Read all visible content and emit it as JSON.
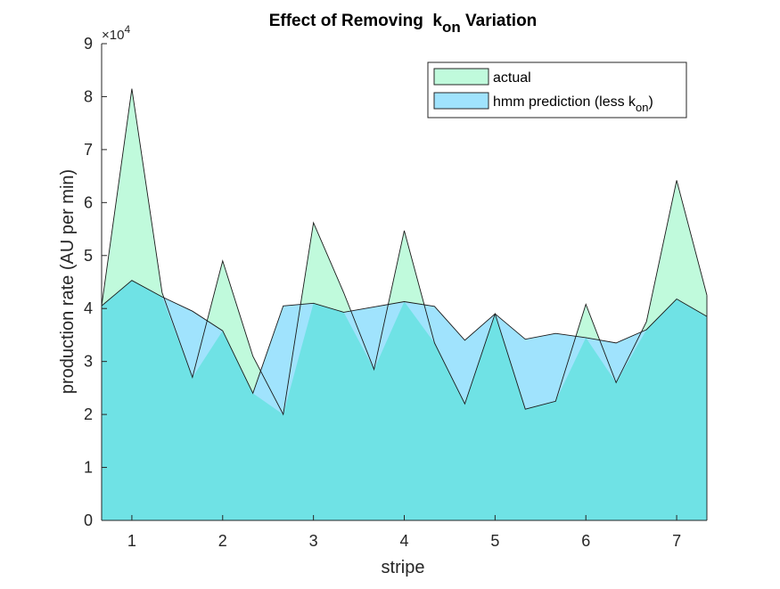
{
  "chart_data": {
    "type": "area",
    "title_parts": {
      "prefix": "Effect of Removing  k",
      "subscript": "on",
      "suffix": " Variation"
    },
    "xlabel": "stripe",
    "ylabel": "production rate (AU per min)",
    "exponent_label": {
      "prefix": "×10",
      "power": "4"
    },
    "xlim": [
      0.667,
      7.333
    ],
    "ylim": [
      0,
      9
    ],
    "x_ticks": [
      1,
      2,
      3,
      4,
      5,
      6,
      7
    ],
    "y_ticks": [
      0,
      1,
      2,
      3,
      4,
      5,
      6,
      7,
      8,
      9
    ],
    "grid": false,
    "legend_position": "top-right",
    "x": [
      0.667,
      1.0,
      1.333,
      1.667,
      2.0,
      2.333,
      2.667,
      3.0,
      3.333,
      3.667,
      4.0,
      4.333,
      4.667,
      5.0,
      5.333,
      5.667,
      6.0,
      6.333,
      6.667,
      7.0,
      7.333
    ],
    "series": [
      {
        "name": "actual",
        "legend_label": "actual",
        "color": "#c0fadc",
        "overlap_color": "#6fe2e5",
        "values": [
          4.05,
          8.15,
          4.3,
          2.7,
          4.9,
          3.1,
          2.0,
          5.62,
          4.3,
          2.85,
          5.47,
          3.35,
          2.2,
          3.9,
          2.1,
          2.25,
          4.08,
          2.6,
          3.75,
          6.42,
          4.25
        ]
      },
      {
        "name": "hmm prediction (less k_on)",
        "legend_label_prefix": "hmm prediction (less k",
        "legend_label_sub": "on",
        "legend_label_suffix": ")",
        "color": "#a0e3fd",
        "values": [
          4.05,
          4.53,
          4.22,
          3.95,
          3.58,
          2.4,
          4.05,
          4.1,
          3.93,
          4.03,
          4.13,
          4.04,
          3.4,
          3.9,
          3.42,
          3.53,
          3.45,
          3.35,
          3.6,
          4.18,
          3.85
        ]
      }
    ]
  }
}
